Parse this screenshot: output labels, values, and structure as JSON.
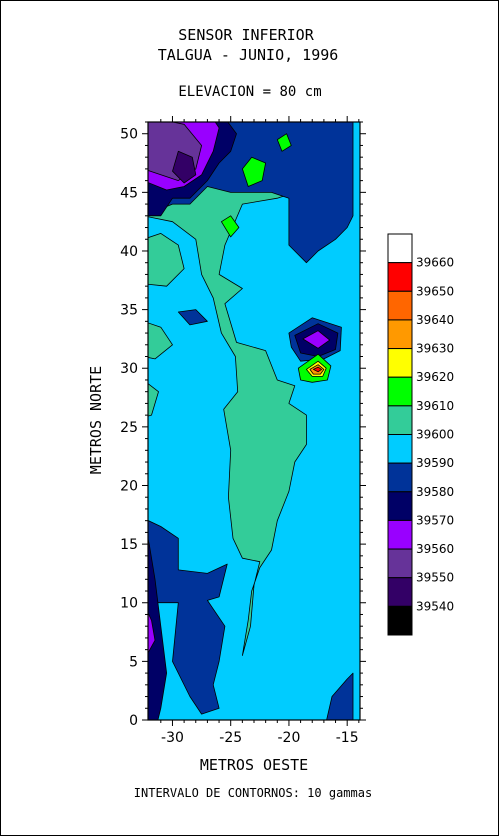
{
  "chart_data": {
    "type": "heatmap",
    "title": "SENSOR INFERIOR",
    "subtitle": "TALGUA - JUNIO, 1996",
    "subtitle2": "ELEVACION = 80 cm",
    "xlabel": "METROS OESTE",
    "ylabel": "METROS NORTE",
    "footer": "INTERVALO DE CONTORNOS: 10 gammas",
    "xlim": [
      -32.1,
      -13.9
    ],
    "ylim": [
      0,
      51
    ],
    "xticks": [
      -30,
      -25,
      -20,
      -15
    ],
    "yticks": [
      0,
      5,
      10,
      15,
      20,
      25,
      30,
      35,
      40,
      45,
      50
    ],
    "xtick_labels": [
      "-30",
      "-25",
      "-20",
      "-15"
    ],
    "ytick_labels": [
      "0",
      "5",
      "10",
      "15",
      "20",
      "25",
      "30",
      "35",
      "40",
      "45",
      "50"
    ],
    "contour_interval": 10,
    "units": "gammas",
    "legend": {
      "placement": "right",
      "levels": [
        {
          "label": "",
          "color": "#ffffff"
        },
        {
          "label": "39660",
          "color": "#ff0000"
        },
        {
          "label": "39650",
          "color": "#ff6600"
        },
        {
          "label": "39640",
          "color": "#ff9900"
        },
        {
          "label": "39630",
          "color": "#ffff00"
        },
        {
          "label": "39620",
          "color": "#00ff00"
        },
        {
          "label": "39610",
          "color": "#33cc99"
        },
        {
          "label": "39600",
          "color": "#00ccff"
        },
        {
          "label": "39590",
          "color": "#003399"
        },
        {
          "label": "39580",
          "color": "#000066"
        },
        {
          "label": "39570",
          "color": "#9900ff"
        },
        {
          "label": "39560",
          "color": "#663399"
        },
        {
          "label": "39550",
          "color": "#330066"
        },
        {
          "label": "39540",
          "color": "#000000"
        }
      ]
    },
    "background_value": 39600,
    "features": [
      {
        "kind": "high",
        "x": -17.5,
        "y": 29.8,
        "peak": 39665
      },
      {
        "kind": "high",
        "x": -23.5,
        "y": 46.8,
        "peak": 39625
      },
      {
        "kind": "high",
        "x": -25.0,
        "y": 42.0,
        "peak": 39620
      },
      {
        "kind": "high",
        "x": -20.5,
        "y": 49.0,
        "peak": 39620
      },
      {
        "kind": "low",
        "x": -29.0,
        "y": 47.0,
        "trough": 39550
      },
      {
        "kind": "low",
        "x": -17.5,
        "y": 32.0,
        "trough": 39575
      },
      {
        "kind": "low",
        "x": -31.5,
        "y": 8.0,
        "trough": 39575
      },
      {
        "kind": "low",
        "x": -31.0,
        "y": 3.0,
        "trough": 39585
      },
      {
        "kind": "low",
        "x": -16.5,
        "y": 2.0,
        "trough": 39590
      }
    ]
  }
}
